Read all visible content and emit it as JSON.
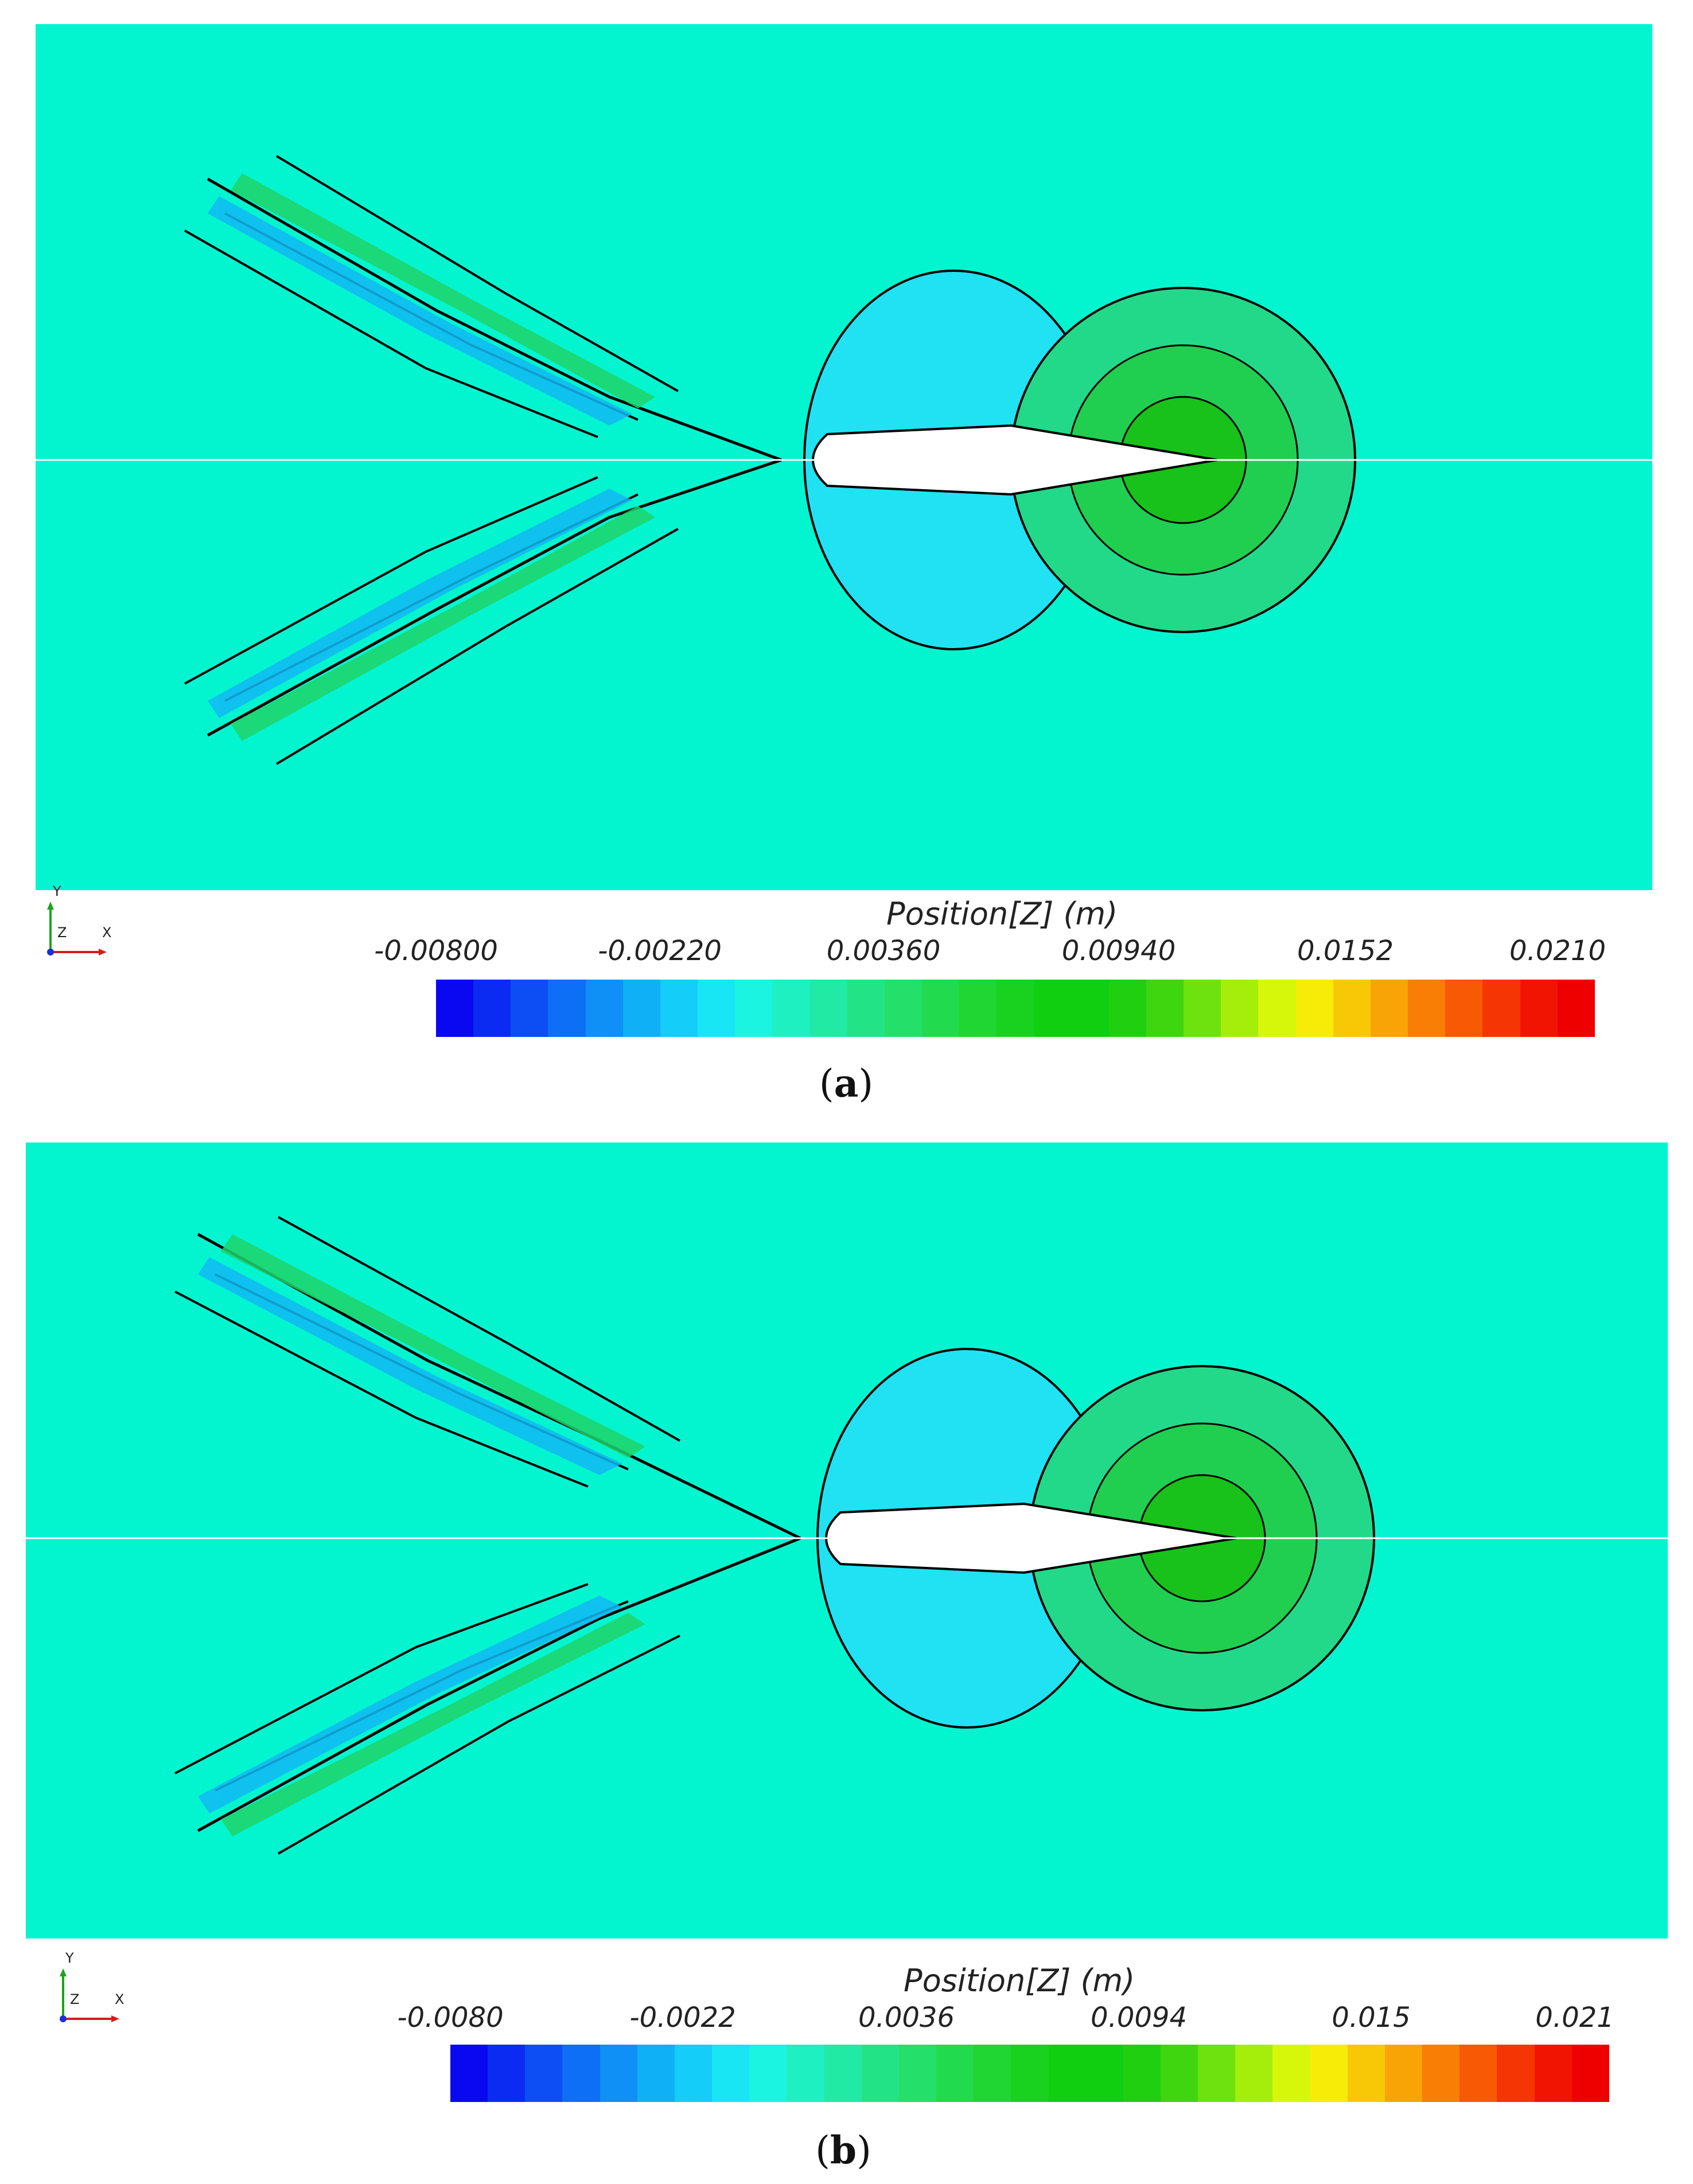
{
  "panels": [
    {
      "id": "a",
      "legend_title": "Position[Z] (m)",
      "ticks": [
        "-0.00800",
        "-0.00220",
        "0.00360",
        "0.00940",
        "0.0152",
        "0.0210"
      ],
      "caption_label": "a"
    },
    {
      "id": "b",
      "legend_title": "Position[Z] (m)",
      "ticks": [
        "-0.0080",
        "-0.0022",
        "0.0036",
        "0.0094",
        "0.015",
        "0.021"
      ],
      "caption_label": "b"
    }
  ],
  "axes_triad": {
    "y_label": "Y",
    "z_label": "Z",
    "x_label": "X"
  },
  "colormap": [
    "#0a08f0",
    "#0b2bf2",
    "#0c4ef4",
    "#0d6ff5",
    "#0e90f6",
    "#10b0f7",
    "#14cdf8",
    "#18e6f5",
    "#1bf4e0",
    "#1ef0c2",
    "#20eaa4",
    "#22e487",
    "#24df6a",
    "#22da4d",
    "#1fd632",
    "#18d21f",
    "#10cf10",
    "#10cf10",
    "#20d010",
    "#3fd60f",
    "#6ee20e",
    "#a5ee0c",
    "#d7f70a",
    "#f7ec08",
    "#f8c807",
    "#f8a306",
    "#f87e05",
    "#f75904",
    "#f53503",
    "#f21402",
    "#ef0000"
  ],
  "background_color": "#03f5d0"
}
